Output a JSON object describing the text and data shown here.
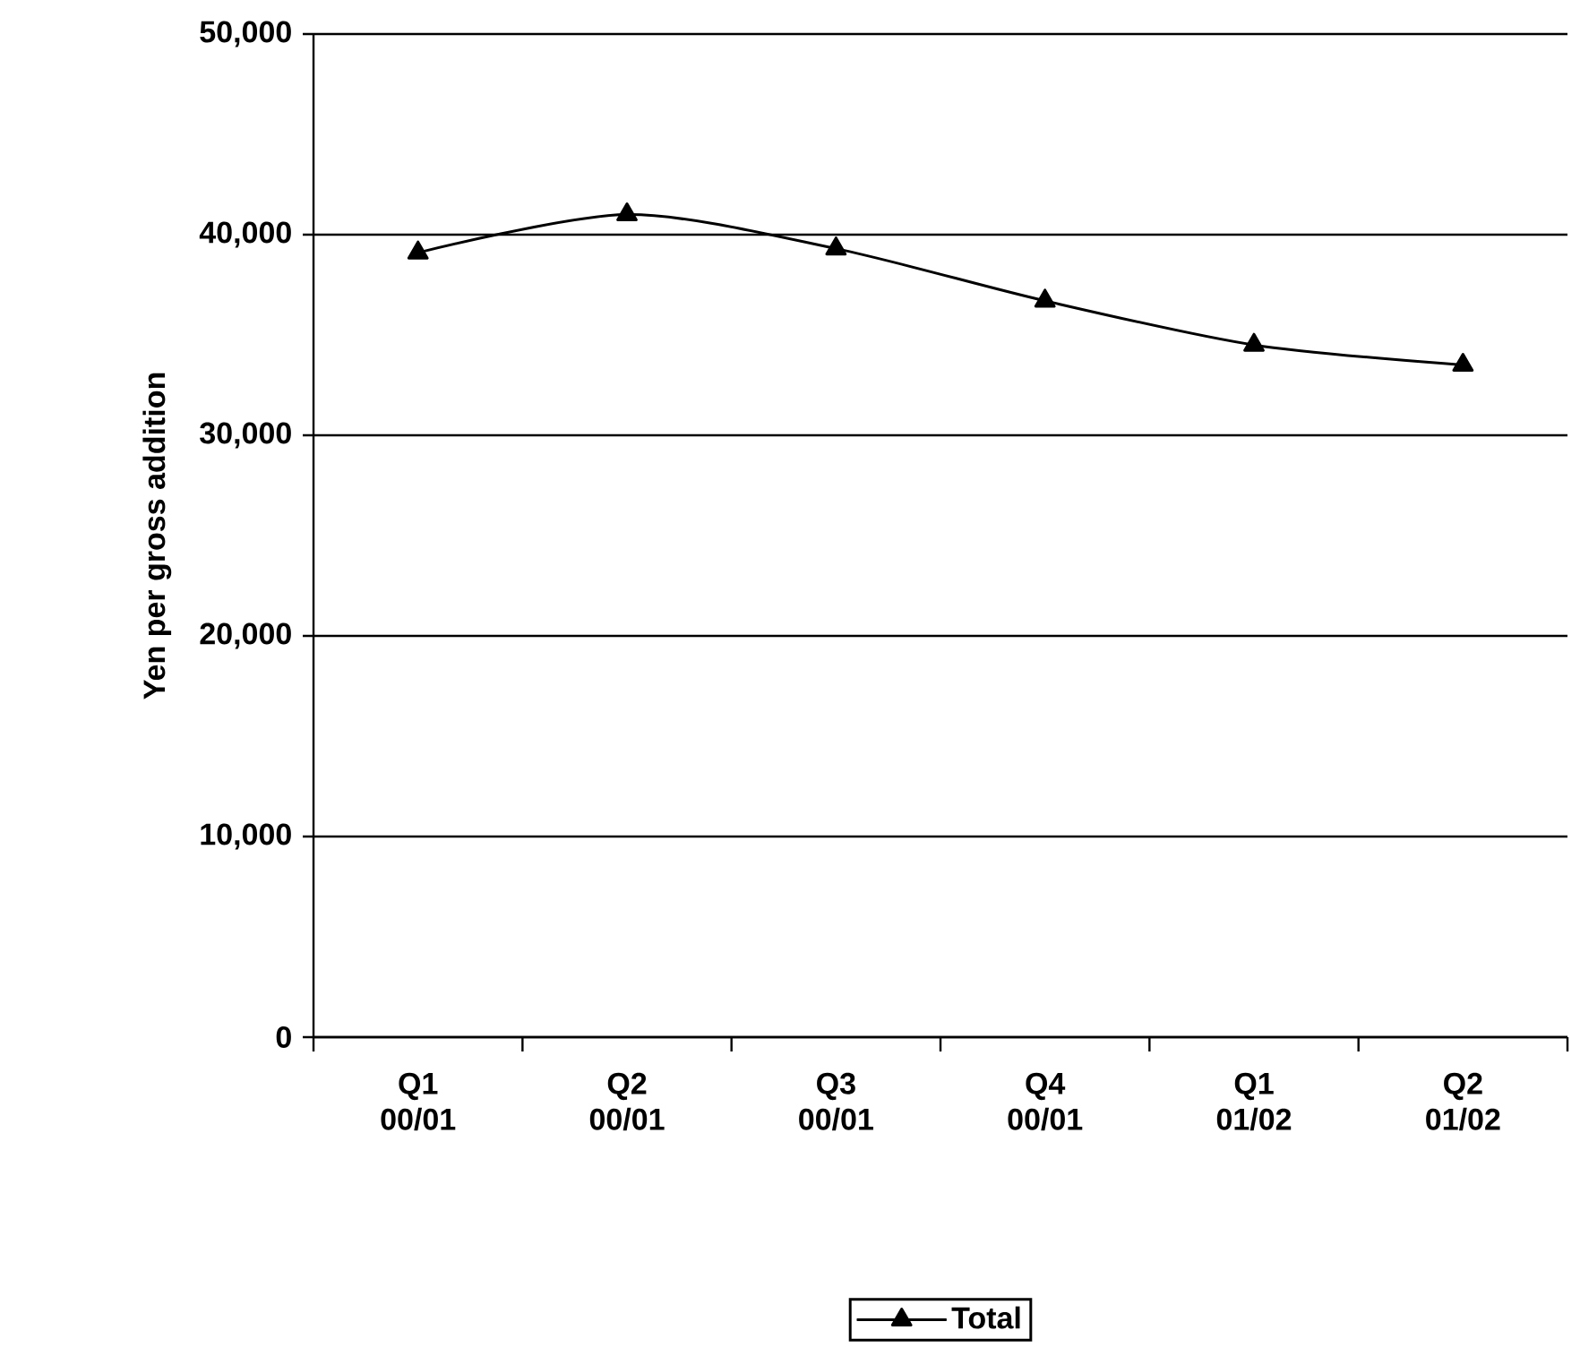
{
  "chart_data": {
    "type": "line",
    "ylabel": "Yen per gross addition",
    "categories": [
      "Q1 00/01",
      "Q2 00/01",
      "Q3 00/01",
      "Q4 00/01",
      "Q1 01/02",
      "Q2 01/02"
    ],
    "series": [
      {
        "name": "Total",
        "color": "#000000",
        "values": [
          39100,
          41000,
          39300,
          36700,
          34500,
          33500
        ]
      }
    ],
    "ylim": [
      0,
      50000
    ],
    "yticks": [
      {
        "value": 0,
        "label": "0"
      },
      {
        "value": 10000,
        "label": "10,000"
      },
      {
        "value": 20000,
        "label": "20,000"
      },
      {
        "value": 30000,
        "label": "30,000"
      },
      {
        "value": 40000,
        "label": "40,000"
      },
      {
        "value": 50000,
        "label": "50,000"
      }
    ],
    "grid": "y",
    "legend": "bottom",
    "marker": "triangle",
    "line_style": "solid"
  }
}
